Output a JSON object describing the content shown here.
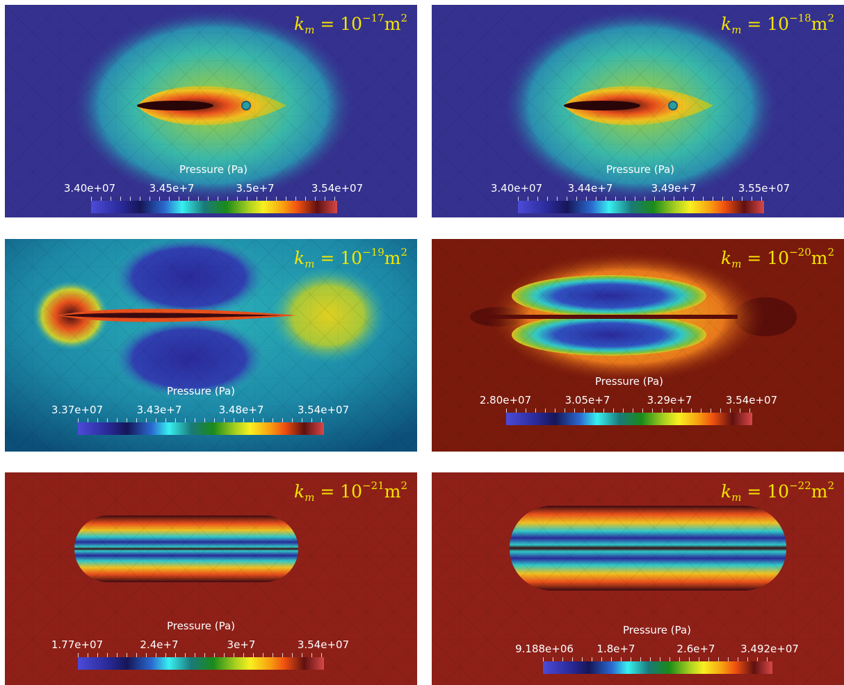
{
  "panels": [
    {
      "id": "p17",
      "k_exponent": "−17",
      "background": "#35318f",
      "legend_title": "Pressure (Pa)",
      "ticks": [
        "3.40e+07",
        "3.45e+7",
        "3.5e+7",
        "3.54e+07"
      ]
    },
    {
      "id": "p18",
      "k_exponent": "−18",
      "background": "#35318f",
      "legend_title": "Pressure (Pa)",
      "ticks": [
        "3.40e+07",
        "3.44e+7",
        "3.49e+7",
        "3.55e+07"
      ]
    },
    {
      "id": "p19",
      "k_exponent": "−19",
      "background": "#0c5f86",
      "legend_title": "Pressure (Pa)",
      "ticks": [
        "3.37e+07",
        "3.43e+7",
        "3.48e+7",
        "3.54e+07"
      ]
    },
    {
      "id": "p20",
      "k_exponent": "−20",
      "background": "#7a1a0c",
      "legend_title": "Pressure (Pa)",
      "ticks": [
        "2.80e+07",
        "3.05e+7",
        "3.29e+7",
        "3.54e+07"
      ]
    },
    {
      "id": "p21",
      "k_exponent": "−21",
      "background": "#8e2018",
      "legend_title": "Pressure (Pa)",
      "ticks": [
        "1.77e+07",
        "2.4e+7",
        "3e+7",
        "3.54e+07"
      ]
    },
    {
      "id": "p22",
      "k_exponent": "−22",
      "background": "#8e2018",
      "legend_title": "Pressure (Pa)",
      "ticks": [
        "9.188e+06",
        "1.8e+7",
        "2.6e+7",
        "3.492e+07"
      ]
    }
  ],
  "label_text": {
    "k": "k",
    "sub": "m",
    "eq": " = 10",
    "unit": "m",
    "unit_sup": "2"
  },
  "colors": {
    "label": "#f5e600",
    "legend_text": "#ffffff"
  }
}
